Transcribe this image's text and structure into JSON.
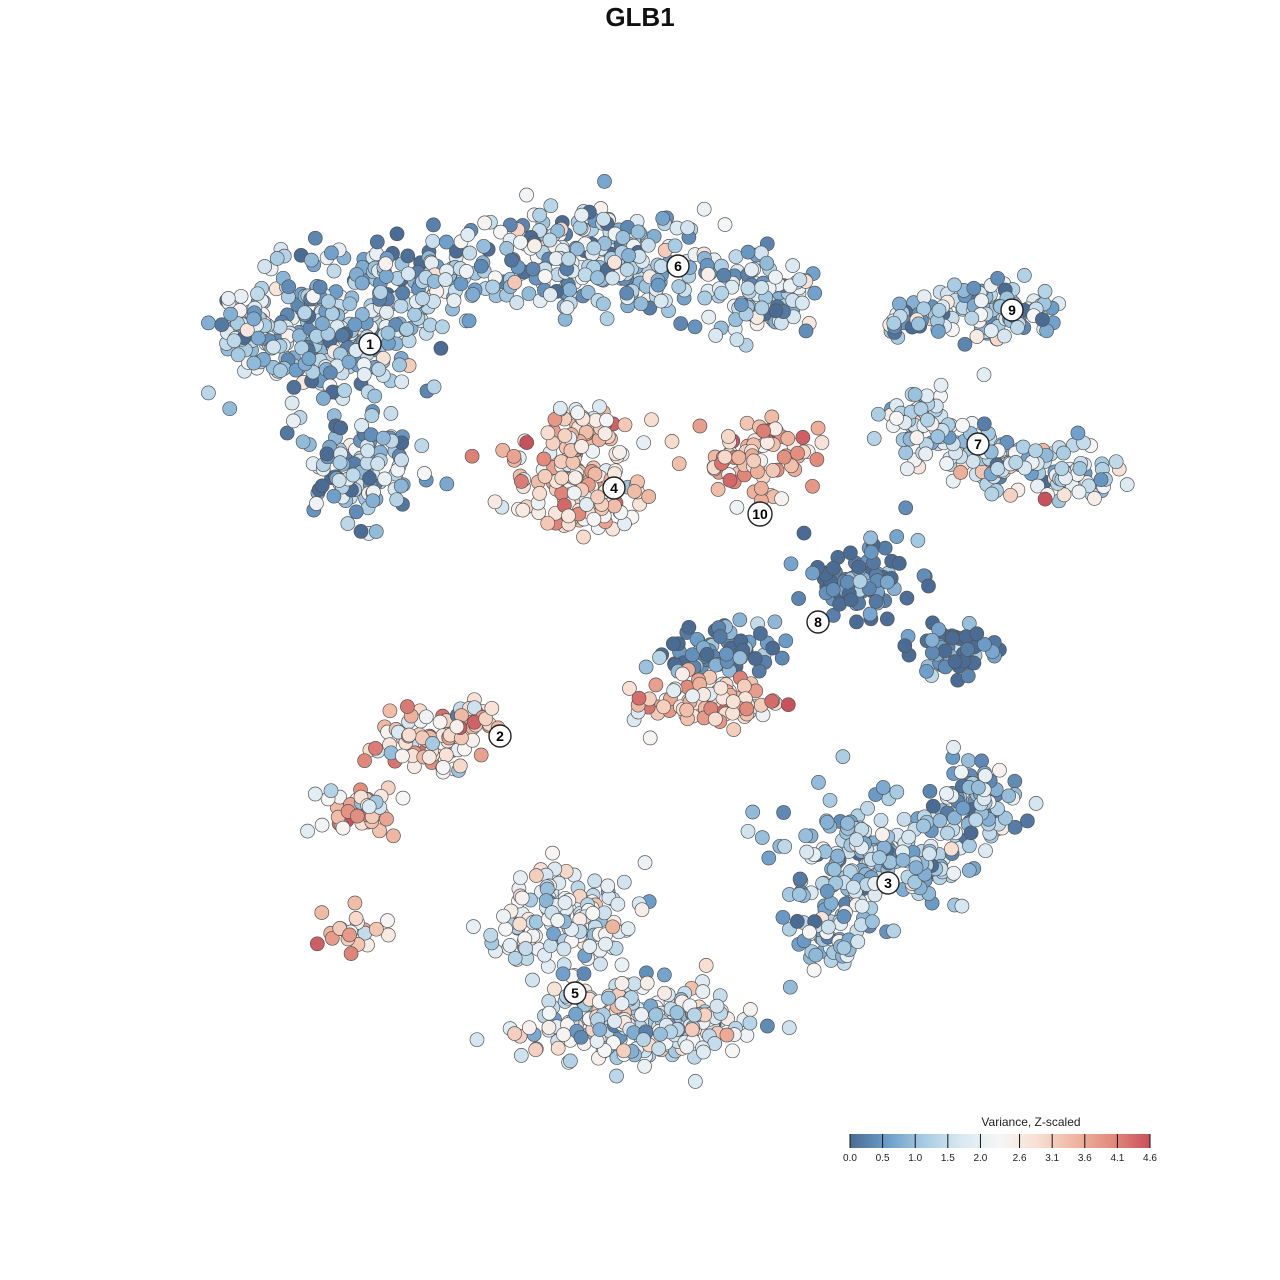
{
  "chart_data": {
    "type": "scatter",
    "title": "GLB1",
    "xlabel": "",
    "ylabel": "",
    "grid": false,
    "legend": {
      "title": "Variance, Z-scaled",
      "placement": "bottom-right",
      "range": [
        0.0,
        4.6
      ],
      "ticks": [
        "0.0",
        "0.5",
        "1.0",
        "1.5",
        "2.0",
        "2.6",
        "3.1",
        "3.6",
        "4.1",
        "4.6"
      ],
      "colors": [
        "#4a6b93",
        "#6c9dc9",
        "#a8cce3",
        "#dbe9f2",
        "#f6f6f6",
        "#f8dfd2",
        "#efb6a0",
        "#e28a7c",
        "#c9515d"
      ]
    },
    "clusters": [
      {
        "label": "1",
        "mean_value": 1.2,
        "spread": "large blob, upper left"
      },
      {
        "label": "2",
        "mean_value": 3.0,
        "spread": "small group, left middle"
      },
      {
        "label": "3",
        "mean_value": 1.1,
        "spread": "right lower"
      },
      {
        "label": "4",
        "mean_value": 3.0,
        "spread": "center"
      },
      {
        "label": "5",
        "mean_value": 1.8,
        "spread": "bottom center"
      },
      {
        "label": "6",
        "mean_value": 1.3,
        "spread": "top center"
      },
      {
        "label": "7",
        "mean_value": 1.6,
        "spread": "right middle"
      },
      {
        "label": "8",
        "mean_value": 0.3,
        "spread": "center right"
      },
      {
        "label": "9",
        "mean_value": 1.3,
        "spread": "upper right"
      },
      {
        "label": "10",
        "mean_value": 3.3,
        "spread": "center right, small"
      }
    ]
  }
}
